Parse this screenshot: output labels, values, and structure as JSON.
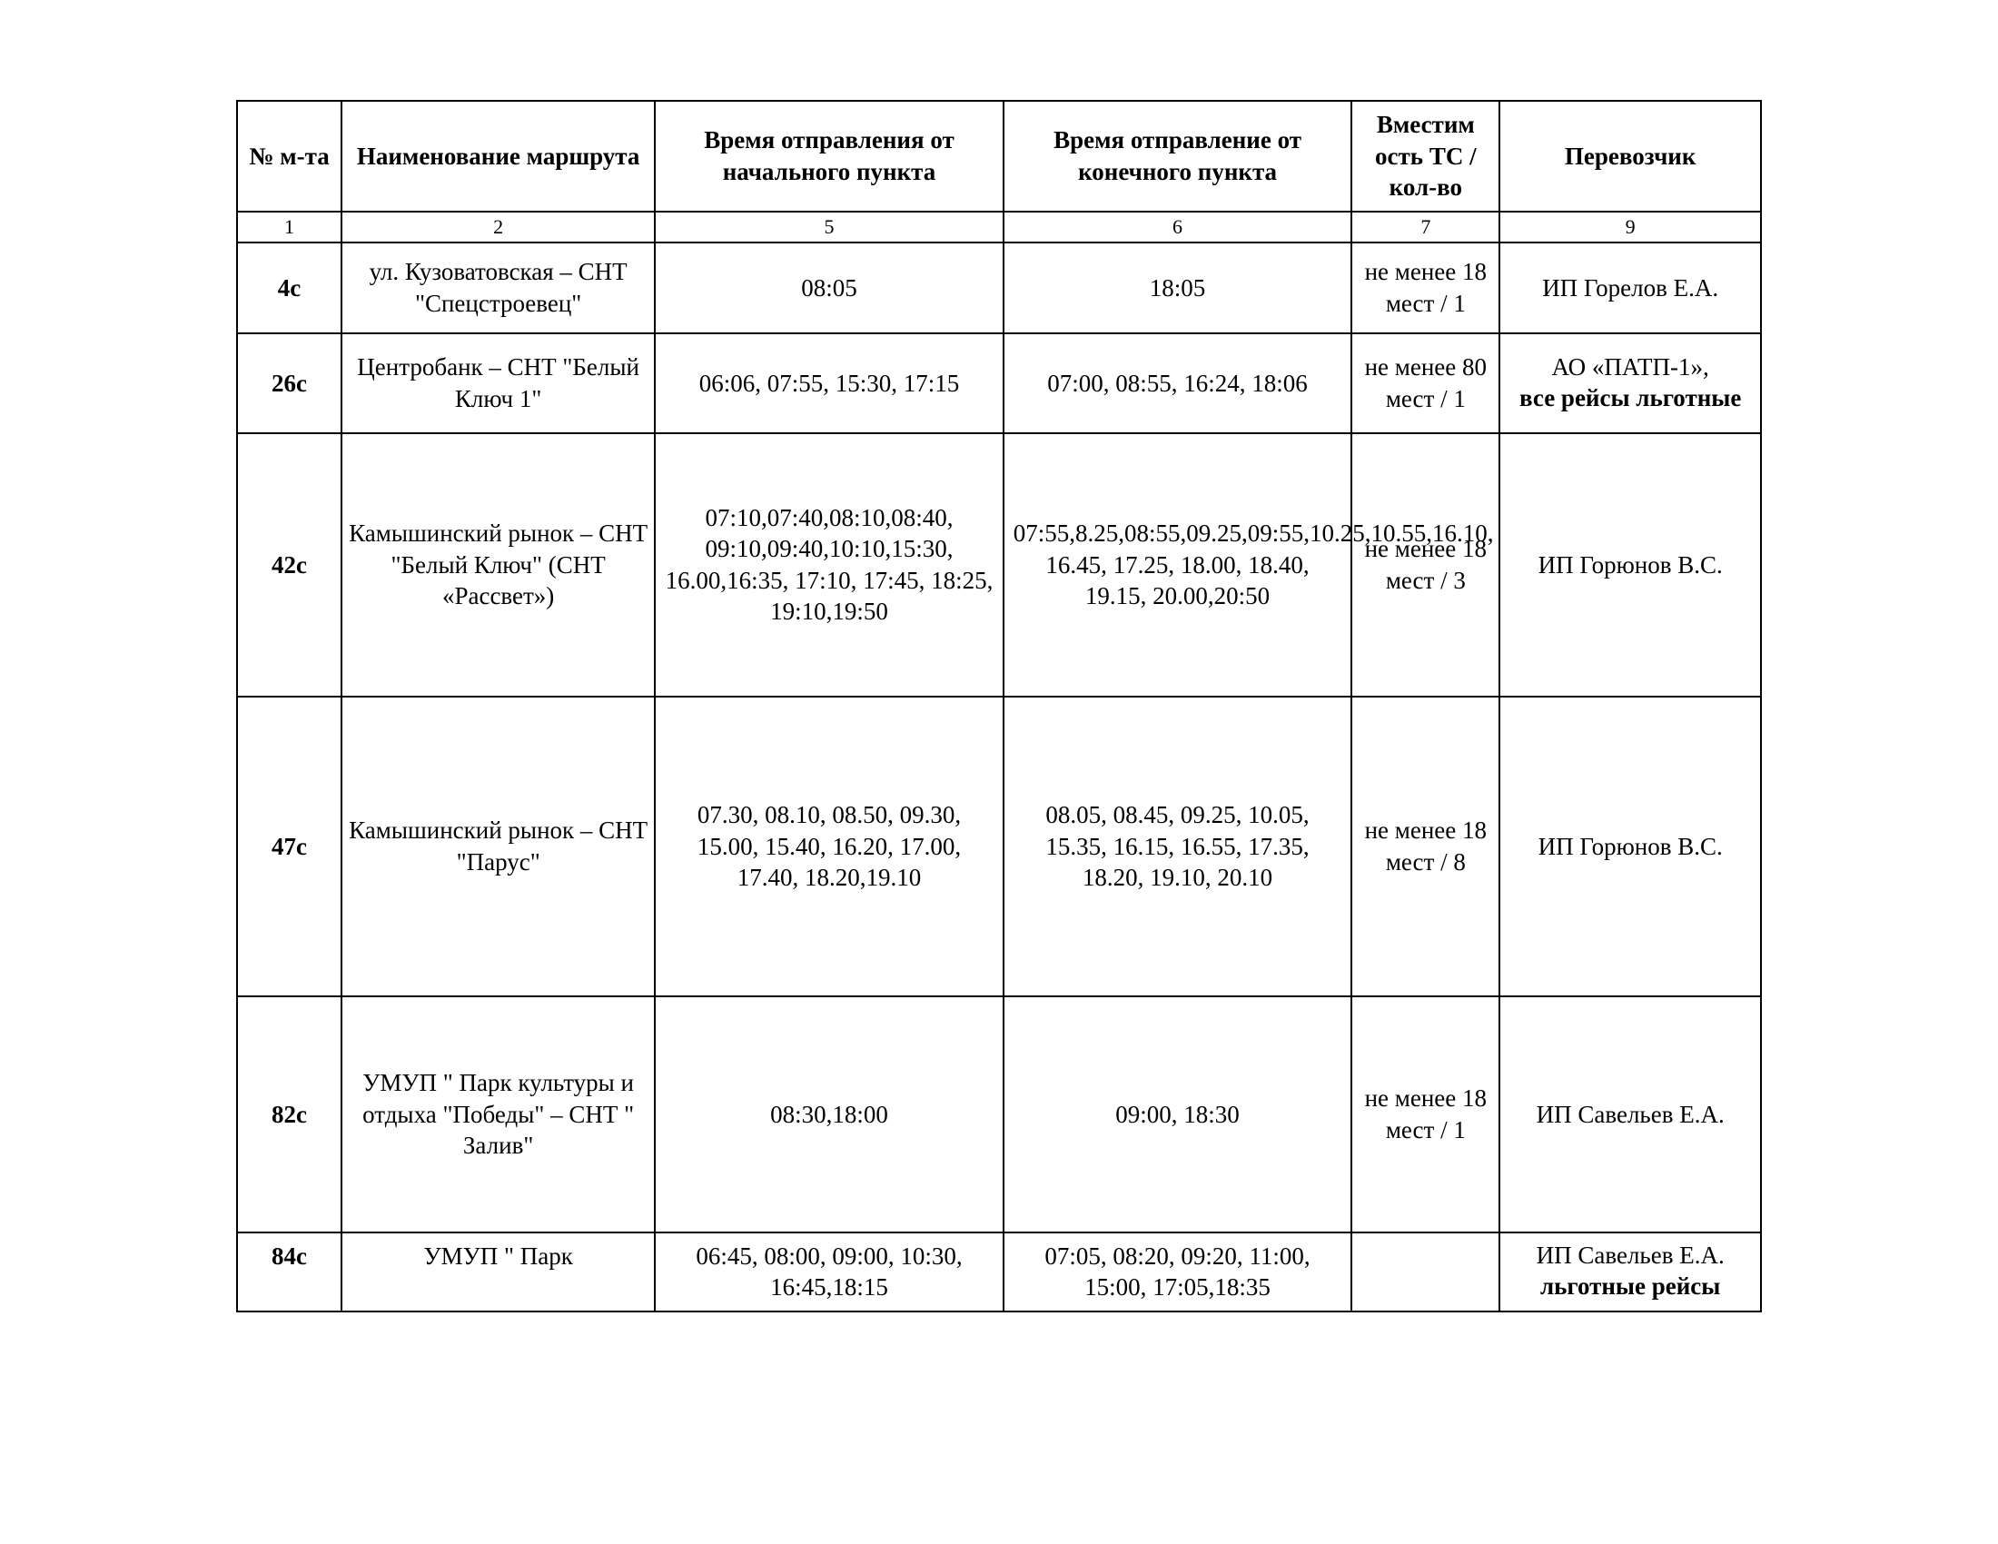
{
  "table": {
    "headers": {
      "num": "№ м-та",
      "name": "Наименование маршрута",
      "dep": "Время отправления от начального пункта",
      "ret": "Время отправление от конечного пункта",
      "cap": "Вместим ость ТС / кол-во",
      "carrier": "Перевозчик"
    },
    "colLabels": {
      "c1": "1",
      "c2": "2",
      "c3": "5",
      "c4": "6",
      "c5": "7",
      "c6": "9"
    },
    "rows": [
      {
        "num": "4с",
        "name": "ул. Кузоватовская – СНТ \"Спецстроевец\"",
        "dep": "08:05",
        "ret": "18:05",
        "cap": "не менее 18 мест / 1",
        "carrier": "ИП Горелов Е.А.",
        "carrier_bold": ""
      },
      {
        "num": "26с",
        "name": "Центробанк – СНТ \"Белый Ключ 1\"",
        "dep": "06:06, 07:55, 15:30, 17:15",
        "ret": "07:00, 08:55, 16:24, 18:06",
        "cap": "не менее 80 мест / 1",
        "carrier": "АО «ПАТП-1»,",
        "carrier_bold": "все рейсы льготные"
      },
      {
        "num": "42с",
        "name": "Камышинский рынок – СНТ \"Белый Ключ\" (СНТ «Рассвет»)",
        "dep": "07:10,07:40,08:10,08:40, 09:10,09:40,10:10,15:30, 16.00,16:35, 17:10, 17:45, 18:25, 19:10,19:50",
        "ret": "07:55,8.25,08:55,09.25,09:55,10.25,10.55,16.10, 16.45, 17.25, 18.00, 18.40, 19.15, 20.00,20:50",
        "cap": "не менее 18 мест / 3",
        "carrier": "ИП Горюнов В.С.",
        "carrier_bold": ""
      },
      {
        "num": "47с",
        "name": "Камышинский рынок – СНТ \"Парус\"",
        "dep": "07.30, 08.10, 08.50, 09.30, 15.00, 15.40, 16.20, 17.00, 17.40, 18.20,19.10",
        "ret": "08.05, 08.45, 09.25, 10.05, 15.35, 16.15, 16.55, 17.35, 18.20, 19.10, 20.10",
        "cap": "не менее 18 мест / 8",
        "carrier": "ИП Горюнов В.С.",
        "carrier_bold": ""
      },
      {
        "num": "82с",
        "name": "УМУП \" Парк культуры и отдыха \"Победы\" – СНТ \" Залив\"",
        "dep": "08:30,18:00",
        "ret": "09:00, 18:30",
        "cap": "не менее 18 мест / 1",
        "carrier": "ИП Савельев Е.А.",
        "carrier_bold": ""
      },
      {
        "num": "84с",
        "name": "УМУП \" Парк",
        "dep": "06:45, 08:00, 09:00, 10:30, 16:45,18:15",
        "ret": "07:05, 08:20, 09:20, 11:00, 15:00, 17:05,18:35",
        "cap": "",
        "carrier": "ИП Савельев Е.А.",
        "carrier_bold": "льготные рейсы"
      }
    ]
  }
}
